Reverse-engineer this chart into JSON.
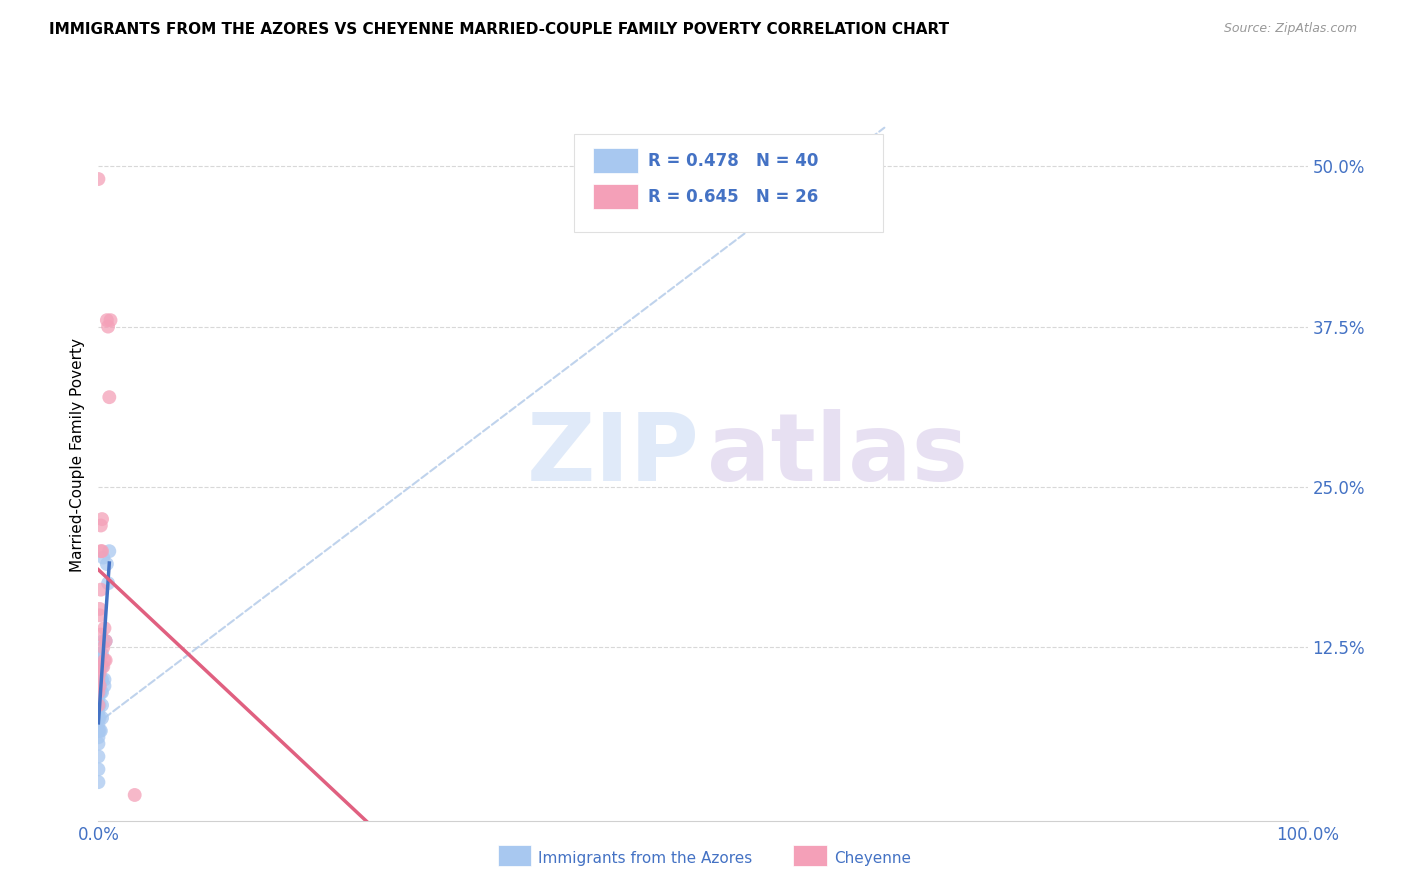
{
  "title": "IMMIGRANTS FROM THE AZORES VS CHEYENNE MARRIED-COUPLE FAMILY POVERTY CORRELATION CHART",
  "source": "Source: ZipAtlas.com",
  "tick_color": "#4472c4",
  "ylabel": "Married-Couple Family Poverty",
  "series1_name": "Immigrants from the Azores",
  "series2_name": "Cheyenne",
  "series1_R": 0.478,
  "series1_N": 40,
  "series2_R": 0.645,
  "series2_N": 26,
  "series1_color": "#a8c8f0",
  "series2_color": "#f4a0b8",
  "series1_line_color": "#4472c4",
  "series2_line_color": "#e06080",
  "diagonal_color": "#b0c8e8",
  "series1_points": [
    [
      0.0,
      0.02
    ],
    [
      0.0,
      0.03
    ],
    [
      0.0,
      0.04
    ],
    [
      0.0,
      0.05
    ],
    [
      0.0,
      0.055
    ],
    [
      0.0,
      0.06
    ],
    [
      0.0,
      0.065
    ],
    [
      0.0,
      0.07
    ],
    [
      0.0,
      0.075
    ],
    [
      0.0,
      0.08
    ],
    [
      0.0,
      0.085
    ],
    [
      0.0,
      0.09
    ],
    [
      0.001,
      0.06
    ],
    [
      0.001,
      0.07
    ],
    [
      0.001,
      0.08
    ],
    [
      0.001,
      0.09
    ],
    [
      0.001,
      0.095
    ],
    [
      0.001,
      0.1
    ],
    [
      0.001,
      0.11
    ],
    [
      0.001,
      0.115
    ],
    [
      0.001,
      0.12
    ],
    [
      0.002,
      0.06
    ],
    [
      0.002,
      0.09
    ],
    [
      0.002,
      0.1
    ],
    [
      0.002,
      0.11
    ],
    [
      0.002,
      0.12
    ],
    [
      0.003,
      0.07
    ],
    [
      0.003,
      0.08
    ],
    [
      0.003,
      0.09
    ],
    [
      0.003,
      0.1
    ],
    [
      0.003,
      0.11
    ],
    [
      0.003,
      0.12
    ],
    [
      0.004,
      0.13
    ],
    [
      0.004,
      0.195
    ],
    [
      0.005,
      0.095
    ],
    [
      0.005,
      0.1
    ],
    [
      0.006,
      0.13
    ],
    [
      0.007,
      0.19
    ],
    [
      0.008,
      0.175
    ],
    [
      0.009,
      0.2
    ]
  ],
  "series2_points": [
    [
      0.0,
      0.08
    ],
    [
      0.0,
      0.09
    ],
    [
      0.0,
      0.1
    ],
    [
      0.0,
      0.11
    ],
    [
      0.001,
      0.095
    ],
    [
      0.001,
      0.105
    ],
    [
      0.001,
      0.15
    ],
    [
      0.001,
      0.155
    ],
    [
      0.002,
      0.135
    ],
    [
      0.002,
      0.17
    ],
    [
      0.002,
      0.2
    ],
    [
      0.002,
      0.22
    ],
    [
      0.003,
      0.225
    ],
    [
      0.003,
      0.2
    ],
    [
      0.004,
      0.11
    ],
    [
      0.004,
      0.125
    ],
    [
      0.005,
      0.115
    ],
    [
      0.005,
      0.14
    ],
    [
      0.006,
      0.13
    ],
    [
      0.006,
      0.115
    ],
    [
      0.007,
      0.38
    ],
    [
      0.008,
      0.375
    ],
    [
      0.009,
      0.32
    ],
    [
      0.01,
      0.38
    ],
    [
      0.0,
      0.49
    ],
    [
      0.03,
      0.01
    ]
  ],
  "series1_line_x": [
    0.0,
    0.009
  ],
  "series2_line_x": [
    0.0,
    1.0
  ],
  "xlim": [
    0.0,
    1.0
  ],
  "ylim": [
    -0.01,
    0.56
  ],
  "xtick_positions": [
    0.0,
    0.25,
    0.5,
    0.75,
    1.0
  ],
  "xtick_labels": [
    "0.0%",
    "",
    "",
    "",
    "100.0%"
  ],
  "ytick_positions": [
    0.125,
    0.25,
    0.375,
    0.5
  ],
  "ytick_labels": [
    "12.5%",
    "25.0%",
    "37.5%",
    "50.0%"
  ],
  "background_color": "#ffffff",
  "legend_color": "#4472c4",
  "watermark_zip_color": "#ccddf0",
  "watermark_atlas_color": "#d8cce8"
}
